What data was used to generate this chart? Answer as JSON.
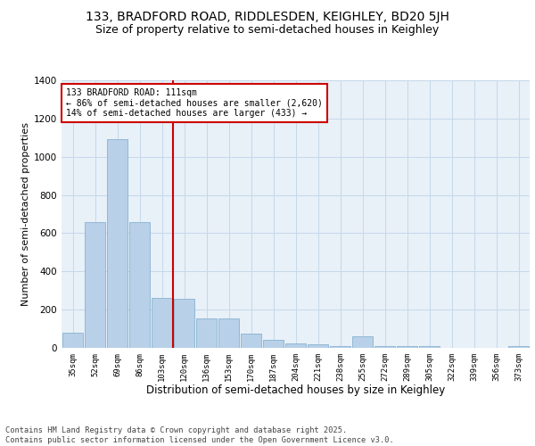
{
  "title1": "133, BRADFORD ROAD, RIDDLESDEN, KEIGHLEY, BD20 5JH",
  "title2": "Size of property relative to semi-detached houses in Keighley",
  "xlabel": "Distribution of semi-detached houses by size in Keighley",
  "ylabel": "Number of semi-detached properties",
  "categories": [
    "35sqm",
    "52sqm",
    "69sqm",
    "86sqm",
    "103sqm",
    "120sqm",
    "136sqm",
    "153sqm",
    "170sqm",
    "187sqm",
    "204sqm",
    "221sqm",
    "238sqm",
    "255sqm",
    "272sqm",
    "289sqm",
    "305sqm",
    "322sqm",
    "339sqm",
    "356sqm",
    "373sqm"
  ],
  "values": [
    80,
    660,
    1090,
    660,
    260,
    255,
    155,
    155,
    75,
    40,
    25,
    20,
    10,
    60,
    10,
    10,
    10,
    0,
    0,
    0,
    10
  ],
  "bar_color": "#b8d0e8",
  "bar_edge_color": "#7aaacb",
  "grid_color": "#c5d8ea",
  "bg_color": "#e8f0f8",
  "vline_color": "#cc0000",
  "annotation_text": "133 BRADFORD ROAD: 111sqm\n← 86% of semi-detached houses are smaller (2,620)\n14% of semi-detached houses are larger (433) →",
  "annotation_box_color": "#ffffff",
  "annotation_box_edge": "#cc0000",
  "ylim": [
    0,
    1400
  ],
  "yticks": [
    0,
    200,
    400,
    600,
    800,
    1000,
    1200,
    1400
  ],
  "footer": "Contains HM Land Registry data © Crown copyright and database right 2025.\nContains public sector information licensed under the Open Government Licence v3.0.",
  "title1_fontsize": 10,
  "title2_fontsize": 9,
  "xlabel_fontsize": 8.5,
  "ylabel_fontsize": 8
}
